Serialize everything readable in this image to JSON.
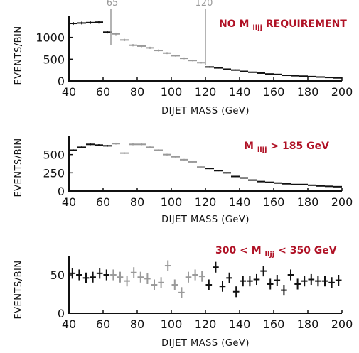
{
  "colors": {
    "dark": "#111111",
    "gray": "#9a9a9a",
    "label": "#b01226"
  },
  "reference_lines": [
    {
      "x": 65,
      "label": "65"
    },
    {
      "x": 120,
      "label": "120"
    }
  ],
  "chart_data": [
    {
      "type": "step-histogram",
      "label_main": "NO M",
      "label_sub": "llјj",
      "label_rest": " REQUIREMENT",
      "xlabel": "DIJET MASS (GeV)",
      "ylabel": "EVENTS/BIN",
      "xlim": [
        40,
        200
      ],
      "ylim": [
        0,
        1500
      ],
      "xticks": [
        40,
        60,
        80,
        100,
        120,
        140,
        160,
        180,
        200
      ],
      "yticks": [
        0,
        500,
        1000
      ],
      "bin_width": 5,
      "gray_range": [
        65,
        120
      ],
      "x": [
        40,
        45,
        50,
        55,
        60,
        65,
        70,
        75,
        80,
        85,
        90,
        95,
        100,
        105,
        110,
        115,
        120,
        125,
        130,
        135,
        140,
        145,
        150,
        155,
        160,
        165,
        170,
        175,
        180,
        185,
        190,
        195
      ],
      "values": [
        1320,
        1330,
        1340,
        1350,
        1120,
        1080,
        940,
        820,
        800,
        760,
        700,
        640,
        580,
        520,
        470,
        420,
        320,
        300,
        270,
        250,
        220,
        200,
        180,
        160,
        150,
        130,
        120,
        110,
        100,
        90,
        80,
        70
      ]
    },
    {
      "type": "step-histogram",
      "label_main": "M",
      "label_sub": "llјj",
      "label_rest": " > 185 GeV",
      "xlabel": "DIJET MASS (GeV)",
      "ylabel": "EVENTS/BIN",
      "xlim": [
        40,
        200
      ],
      "ylim": [
        0,
        750
      ],
      "xticks": [
        40,
        60,
        80,
        100,
        120,
        140,
        160,
        180,
        200
      ],
      "yticks": [
        0,
        250,
        500
      ],
      "bin_width": 5,
      "gray_range": [
        65,
        120
      ],
      "x": [
        40,
        45,
        50,
        55,
        60,
        65,
        70,
        75,
        80,
        85,
        90,
        95,
        100,
        105,
        110,
        115,
        120,
        125,
        130,
        135,
        140,
        145,
        150,
        155,
        160,
        165,
        170,
        175,
        180,
        185,
        190,
        195
      ],
      "values": [
        560,
        600,
        640,
        630,
        620,
        650,
        520,
        640,
        640,
        600,
        560,
        500,
        470,
        430,
        400,
        330,
        310,
        280,
        250,
        200,
        180,
        150,
        130,
        120,
        110,
        100,
        90,
        90,
        80,
        70,
        65,
        60
      ]
    },
    {
      "type": "scatter-errorbar",
      "label_main": "300 < M",
      "label_sub": "llјj",
      "label_rest": " < 350 GeV",
      "xlabel": "DIJET MASS (GeV)",
      "ylabel": "EVENTS/BIN",
      "xlim": [
        40,
        200
      ],
      "ylim": [
        0,
        75
      ],
      "xticks": [
        40,
        60,
        80,
        100,
        120,
        140,
        160,
        180,
        200
      ],
      "yticks": [
        0,
        50
      ],
      "bin_width": 4,
      "gray_range": [
        65,
        120
      ],
      "x": [
        42,
        46,
        50,
        54,
        58,
        62,
        66,
        70,
        74,
        78,
        82,
        86,
        90,
        94,
        98,
        102,
        106,
        110,
        114,
        118,
        122,
        126,
        130,
        134,
        138,
        142,
        146,
        150,
        154,
        158,
        162,
        166,
        170,
        174,
        178,
        182,
        186,
        190,
        194,
        198
      ],
      "values": [
        52,
        50,
        46,
        47,
        52,
        50,
        50,
        47,
        42,
        53,
        47,
        45,
        37,
        40,
        62,
        37,
        27,
        47,
        50,
        48,
        37,
        60,
        35,
        46,
        28,
        42,
        42,
        44,
        55,
        38,
        43,
        30,
        50,
        38,
        42,
        44,
        42,
        42,
        40,
        43
      ]
    }
  ]
}
